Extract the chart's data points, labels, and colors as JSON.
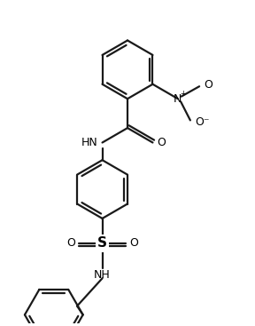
{
  "background_color": "#ffffff",
  "line_color": "#1a1a1a",
  "line_width": 1.6,
  "fig_width": 2.88,
  "fig_height": 3.67,
  "dpi": 100,
  "xlim": [
    -3.5,
    4.5
  ],
  "ylim": [
    -5.5,
    5.5
  ],
  "bond_color": "#1a1a1a",
  "text_color": "#000000",
  "no2_n_color": "#000000",
  "no2_o_color": "#000000",
  "amide_color": "#000000",
  "sulfur_color": "#000000",
  "nh_color": "#000000",
  "o_color": "#000000"
}
